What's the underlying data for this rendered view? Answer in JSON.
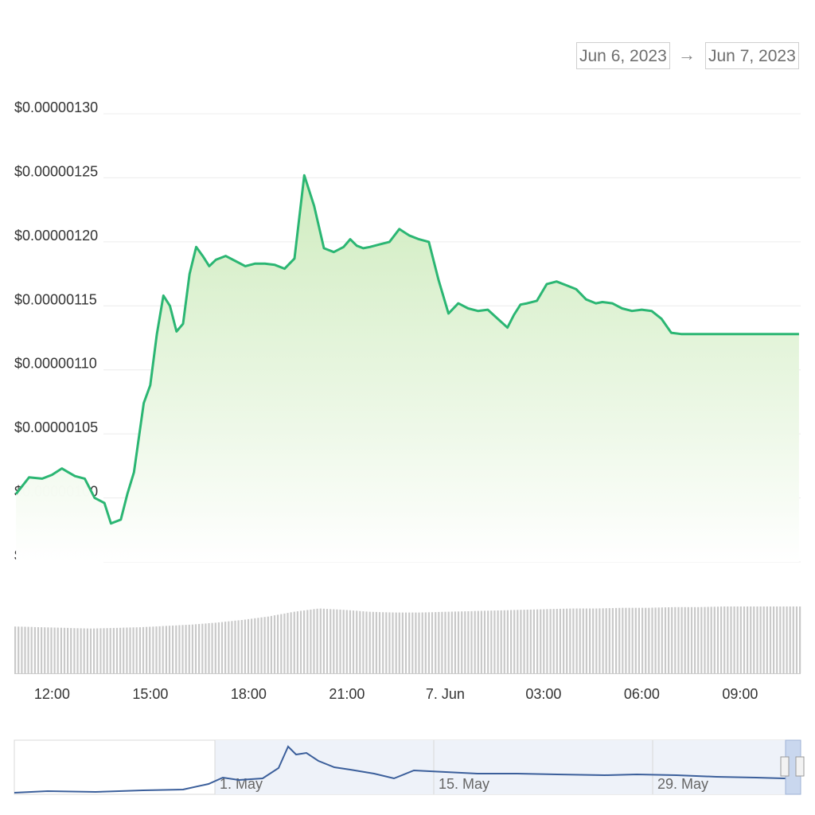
{
  "date_range": {
    "from": "Jun 6, 2023",
    "arrow": "→",
    "to": "Jun 7, 2023"
  },
  "colors": {
    "price_line": "#2bb673",
    "area_top": "#d4efc6",
    "volume": "#c9c9c9",
    "navigator_line": "#3b5f9b",
    "navigator_fill": "#eef2f9"
  },
  "chart_data": {
    "type": "line",
    "title": "",
    "xlabel": "",
    "ylabel": "",
    "y_tick_labels": [
      "$0.00000130",
      "$0.00000125",
      "$0.00000120",
      "$0.00000115",
      "$0.00000110",
      "$0.00000105",
      "$0.00000100",
      "$0.000000950000"
    ],
    "y_ticks": [
      1.3e-06,
      1.25e-06,
      1.2e-06,
      1.15e-06,
      1.1e-06,
      1.05e-06,
      1e-06,
      9.5e-07
    ],
    "ylim": [
      9.5e-07,
      1.3e-06
    ],
    "x_tick_labels": [
      "12:00",
      "15:00",
      "18:00",
      "21:00",
      "7. Jun",
      "03:00",
      "06:00",
      "09:00"
    ],
    "x_ticks_hours": [
      12,
      15,
      18,
      21,
      24,
      27,
      30,
      33
    ],
    "xlim_hours": [
      10.85,
      34.85
    ],
    "grid": true,
    "legend": "none",
    "series": [
      {
        "x_hours": [
          10.9,
          11.3,
          11.7,
          12.0,
          12.3,
          12.5,
          12.7,
          13.0,
          13.3,
          13.6,
          13.8,
          14.1,
          14.3,
          14.5,
          14.8,
          15.0,
          15.2,
          15.4,
          15.6,
          15.8,
          16.0,
          16.2,
          16.4,
          16.6,
          16.8,
          17.0,
          17.3,
          17.6,
          17.9,
          18.2,
          18.5,
          18.8,
          19.1,
          19.4,
          19.7,
          20.0,
          20.3,
          20.6,
          20.9,
          21.1,
          21.3,
          21.5,
          21.7,
          22.0,
          22.3,
          22.6,
          22.9,
          23.2,
          23.5,
          23.8,
          24.1,
          24.4,
          24.7,
          25.0,
          25.3,
          25.6,
          25.9,
          26.1,
          26.3,
          26.5,
          26.8,
          27.1,
          27.4,
          27.7,
          28.0,
          28.3,
          28.6,
          28.8,
          29.1,
          29.4,
          29.7,
          30.0,
          30.3,
          30.6,
          30.9,
          31.2,
          31.5,
          31.8,
          32.1,
          32.4,
          32.7,
          33.0,
          33.3,
          33.6,
          33.9,
          34.2,
          34.5,
          34.8
        ],
        "values": [
          1.003e-06,
          1.016e-06,
          1.015e-06,
          1.018e-06,
          1.023e-06,
          1.02e-06,
          1.017e-06,
          1.015e-06,
          1e-06,
          9.96e-07,
          9.8e-07,
          9.83e-07,
          1.003e-06,
          1.02e-06,
          1.074e-06,
          1.088e-06,
          1.128e-06,
          1.158e-06,
          1.15e-06,
          1.13e-06,
          1.136e-06,
          1.175e-06,
          1.196e-06,
          1.189e-06,
          1.181e-06,
          1.186e-06,
          1.189e-06,
          1.185e-06,
          1.181e-06,
          1.183e-06,
          1.183e-06,
          1.182e-06,
          1.179e-06,
          1.187e-06,
          1.252e-06,
          1.228e-06,
          1.195e-06,
          1.192e-06,
          1.196e-06,
          1.202e-06,
          1.197e-06,
          1.195e-06,
          1.196e-06,
          1.198e-06,
          1.2e-06,
          1.21e-06,
          1.205e-06,
          1.202e-06,
          1.2e-06,
          1.17e-06,
          1.144e-06,
          1.152e-06,
          1.148e-06,
          1.146e-06,
          1.147e-06,
          1.14e-06,
          1.133e-06,
          1.143e-06,
          1.151e-06,
          1.152e-06,
          1.154e-06,
          1.167e-06,
          1.169e-06,
          1.166e-06,
          1.163e-06,
          1.155e-06,
          1.152e-06,
          1.153e-06,
          1.152e-06,
          1.148e-06,
          1.146e-06,
          1.147e-06,
          1.146e-06,
          1.14e-06,
          1.129e-06,
          1.128e-06,
          1.128e-06,
          1.128e-06,
          1.128e-06,
          1.128e-06,
          1.128e-06,
          1.128e-06,
          1.128e-06,
          1.128e-06,
          1.128e-06,
          1.128e-06,
          1.128e-06,
          1.128e-06
        ]
      }
    ],
    "volume": {
      "note_units": "relative",
      "x_hours_start": 10.9,
      "x_hours_end": 34.85,
      "levels": [
        0.7,
        0.69,
        0.68,
        0.67,
        0.68,
        0.69,
        0.71,
        0.73,
        0.76,
        0.8,
        0.85,
        0.92,
        0.97,
        0.95,
        0.92,
        0.91,
        0.91,
        0.92,
        0.93,
        0.94,
        0.95,
        0.96,
        0.97,
        0.97,
        0.98,
        0.98,
        0.99,
        0.99,
        1.0,
        1.0,
        1.0,
        1.0
      ]
    }
  },
  "navigator": {
    "tick_labels": [
      "1. May",
      "15. May",
      "29. May"
    ]
  }
}
